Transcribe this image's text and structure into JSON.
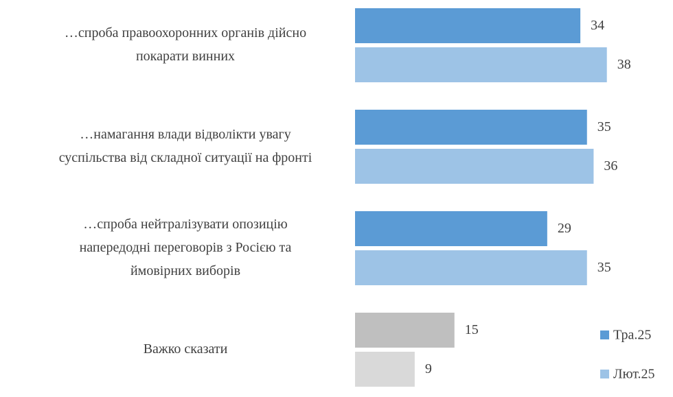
{
  "chart_data": {
    "type": "bar",
    "orientation": "horizontal",
    "categories": [
      [
        "…спроба правоохоронних органів дійсно",
        "покарати винних"
      ],
      [
        "…намагання влади відволікти увагу",
        "суспільства від складної ситуації на фронті"
      ],
      [
        "…спроба нейтралізувати опозицію",
        "напередодні переговорів з Росією та",
        "ймовірних виборів"
      ],
      [
        "Важко сказати"
      ]
    ],
    "series": [
      {
        "name": "Тра.25",
        "color": "#5b9bd5",
        "point_colors": [
          "#5b9bd5",
          "#5b9bd5",
          "#5b9bd5",
          "#bfbfbf"
        ],
        "values": [
          34,
          35,
          29,
          15
        ]
      },
      {
        "name": "Лют.25",
        "color": "#9dc3e6",
        "point_colors": [
          "#9dc3e6",
          "#9dc3e6",
          "#9dc3e6",
          "#d9d9d9"
        ],
        "values": [
          38,
          36,
          35,
          9
        ]
      }
    ],
    "legend": "bottom-right"
  }
}
